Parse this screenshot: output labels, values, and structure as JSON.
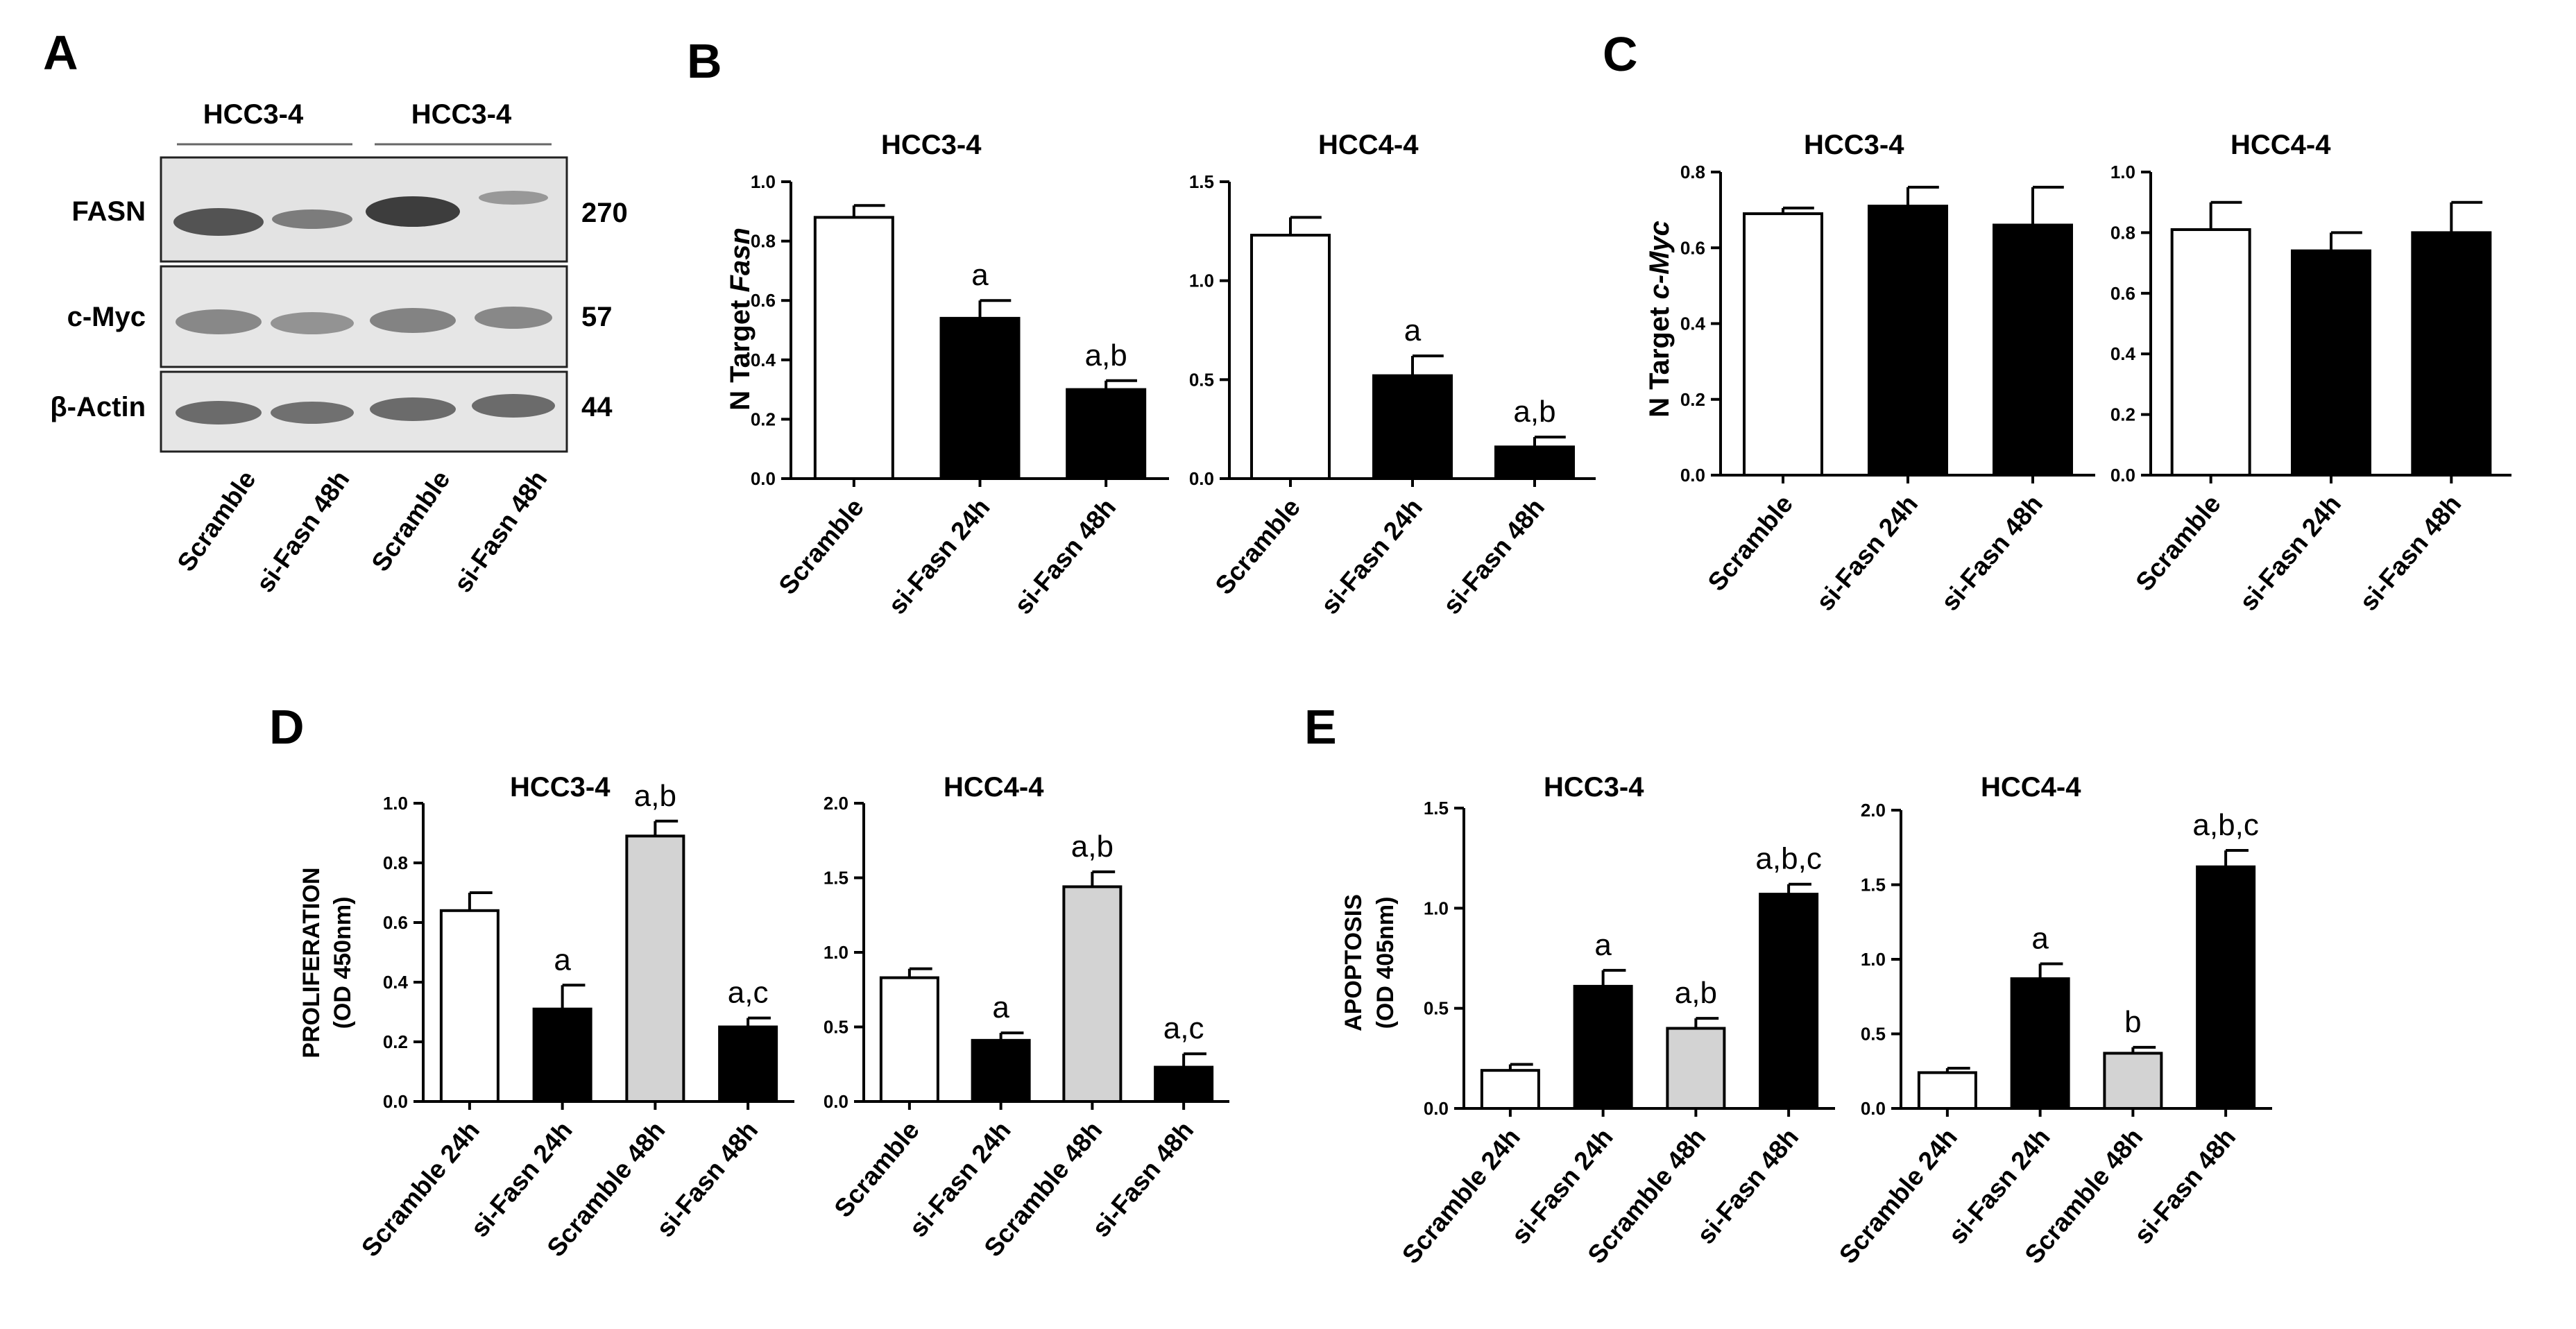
{
  "panel_letters": {
    "A": "A",
    "B": "B",
    "C": "C",
    "D": "D",
    "E": "E"
  },
  "western_blot": {
    "cell_lines": [
      "HCC3-4",
      "HCC3-4"
    ],
    "proteins": [
      {
        "name": "FASN",
        "size": "270"
      },
      {
        "name": "c-Myc",
        "size": "57"
      },
      {
        "name": "β-Actin",
        "size": "44"
      }
    ],
    "lanes": [
      "Scramble",
      "si-Fasn 48h",
      "Scramble",
      "si-Fasn 48h"
    ]
  },
  "y_labels": {
    "B": {
      "prefix": "N Target ",
      "gene": "Fasn"
    },
    "C": {
      "prefix": "N Target ",
      "gene": "c-Myc"
    },
    "D": {
      "line1": "PROLIFERATION",
      "line2": "(OD 450nm)"
    },
    "E": {
      "line1": "APOPTOSIS",
      "line2": "(OD 405nm)"
    }
  },
  "colors": {
    "white": "#ffffff",
    "black": "#000000",
    "gray": "#d3d3d3"
  },
  "chart_data": [
    {
      "id": "B1",
      "type": "bar",
      "title": "HCC3-4",
      "ylim": [
        0,
        1.0
      ],
      "ticks": [
        "0.0",
        "0.2",
        "0.4",
        "0.6",
        "0.8",
        "1.0"
      ],
      "categories": [
        "Scramble",
        "si-Fasn 24h",
        "si-Fasn 48h"
      ],
      "values": [
        0.88,
        0.54,
        0.3
      ],
      "errors": [
        0.04,
        0.06,
        0.03
      ],
      "fills": [
        "white",
        "black",
        "black"
      ],
      "labels": [
        "",
        "a",
        "a,b"
      ]
    },
    {
      "id": "B2",
      "type": "bar",
      "title": "HCC4-4",
      "ylim": [
        0,
        1.5
      ],
      "ticks": [
        "0.0",
        "0.5",
        "1.0",
        "1.5"
      ],
      "categories": [
        "Scramble",
        "si-Fasn 24h",
        "si-Fasn 48h"
      ],
      "values": [
        1.23,
        0.52,
        0.16
      ],
      "errors": [
        0.09,
        0.1,
        0.05
      ],
      "fills": [
        "white",
        "black",
        "black"
      ],
      "labels": [
        "",
        "a",
        "a,b"
      ]
    },
    {
      "id": "C1",
      "type": "bar",
      "title": "HCC3-4",
      "ylim": [
        0,
        0.8
      ],
      "ticks": [
        "0.0",
        "0.2",
        "0.4",
        "0.6",
        "0.8"
      ],
      "categories": [
        "Scramble",
        "si-Fasn 24h",
        "si-Fasn 48h"
      ],
      "values": [
        0.69,
        0.71,
        0.66
      ],
      "errors": [
        0.015,
        0.05,
        0.1
      ],
      "fills": [
        "white",
        "black",
        "black"
      ],
      "labels": [
        "",
        "",
        ""
      ]
    },
    {
      "id": "C2",
      "type": "bar",
      "title": "HCC4-4",
      "ylim": [
        0,
        1.0
      ],
      "ticks": [
        "0.0",
        "0.2",
        "0.4",
        "0.6",
        "0.8",
        "1.0"
      ],
      "categories": [
        "Scramble",
        "si-Fasn 24h",
        "si-Fasn 48h"
      ],
      "values": [
        0.81,
        0.74,
        0.8
      ],
      "errors": [
        0.09,
        0.06,
        0.1
      ],
      "fills": [
        "white",
        "black",
        "black"
      ],
      "labels": [
        "",
        "",
        ""
      ]
    },
    {
      "id": "D1",
      "type": "bar",
      "title": "HCC3-4",
      "ylim": [
        0,
        1.0
      ],
      "ticks": [
        "0.0",
        "0.2",
        "0.4",
        "0.6",
        "0.8",
        "1.0"
      ],
      "categories": [
        "Scramble 24h",
        "si-Fasn 24h",
        "Scramble 48h",
        "si-Fasn 48h"
      ],
      "values": [
        0.64,
        0.31,
        0.89,
        0.25
      ],
      "errors": [
        0.06,
        0.08,
        0.05,
        0.03
      ],
      "fills": [
        "white",
        "black",
        "gray",
        "black"
      ],
      "labels": [
        "",
        "a",
        "a,b",
        "a,c"
      ]
    },
    {
      "id": "D2",
      "type": "bar",
      "title": "HCC4-4",
      "ylim": [
        0,
        2.0
      ],
      "ticks": [
        "0.0",
        "0.5",
        "1.0",
        "1.5",
        "2.0"
      ],
      "categories": [
        "Scramble",
        "si-Fasn 24h",
        "Scramble 48h",
        "si-Fasn 48h"
      ],
      "values": [
        0.83,
        0.41,
        1.44,
        0.23
      ],
      "errors": [
        0.06,
        0.05,
        0.1,
        0.09
      ],
      "fills": [
        "white",
        "black",
        "gray",
        "black"
      ],
      "labels": [
        "",
        "a",
        "a,b",
        "a,c"
      ]
    },
    {
      "id": "E1",
      "type": "bar",
      "title": "HCC3-4",
      "ylim": [
        0,
        1.5
      ],
      "ticks": [
        "0.0",
        "0.5",
        "1.0",
        "1.5"
      ],
      "categories": [
        "Scramble 24h",
        "si-Fasn 24h",
        "Scramble 48h",
        "si-Fasn 48h"
      ],
      "values": [
        0.19,
        0.61,
        0.4,
        1.07
      ],
      "errors": [
        0.03,
        0.08,
        0.05,
        0.05
      ],
      "fills": [
        "white",
        "black",
        "gray",
        "black"
      ],
      "labels": [
        "",
        "a",
        "a,b",
        "a,b,c"
      ]
    },
    {
      "id": "E2",
      "type": "bar",
      "title": "HCC4-4",
      "ylim": [
        0,
        2.0
      ],
      "ticks": [
        "0.0",
        "0.5",
        "1.0",
        "1.5",
        "2.0"
      ],
      "categories": [
        "Scramble 24h",
        "si-Fasn 24h",
        "Scramble 48h",
        "si-Fasn 48h"
      ],
      "values": [
        0.24,
        0.87,
        0.37,
        1.62
      ],
      "errors": [
        0.03,
        0.1,
        0.04,
        0.11
      ],
      "fills": [
        "white",
        "black",
        "gray",
        "black"
      ],
      "labels": [
        "",
        "a",
        "b",
        "a,b,c"
      ]
    }
  ]
}
